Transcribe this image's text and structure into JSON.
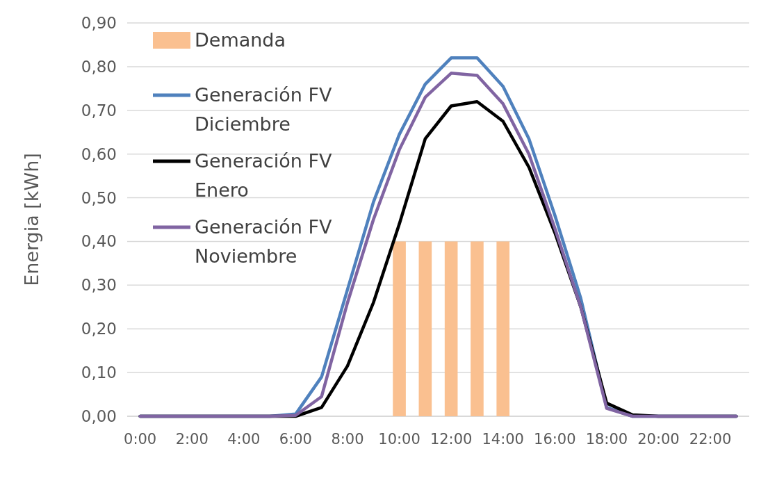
{
  "chart_data": {
    "type": "line",
    "ylabel": "Energia [kWh]",
    "categories": [
      "0:00",
      null,
      "2:00",
      null,
      "4:00",
      null,
      "6:00",
      null,
      "8:00",
      null,
      "10:00",
      null,
      "12:00",
      null,
      "14:00",
      null,
      "16:00",
      null,
      "18:00",
      null,
      "20:00",
      null,
      "22:00",
      null
    ],
    "ylim": [
      0,
      0.9
    ],
    "yticks": [
      {
        "value": 0,
        "label": "0,00"
      },
      {
        "value": 0.1,
        "label": "0,10"
      },
      {
        "value": 0.2,
        "label": "0,20"
      },
      {
        "value": 0.3,
        "label": "0,30"
      },
      {
        "value": 0.4,
        "label": "0,40"
      },
      {
        "value": 0.5,
        "label": "0,50"
      },
      {
        "value": 0.6,
        "label": "0,60"
      },
      {
        "value": 0.7,
        "label": "0,70"
      },
      {
        "value": 0.8,
        "label": "0,80"
      },
      {
        "value": 0.9,
        "label": "0,90"
      }
    ],
    "grid": "y",
    "legend": "top left",
    "series": [
      {
        "name": "Demanda",
        "type": "bar",
        "color": "#fac090",
        "values": [
          null,
          null,
          null,
          null,
          null,
          null,
          null,
          null,
          null,
          null,
          0.4,
          0.4,
          0.4,
          0.4,
          0.4,
          null,
          null,
          null,
          null,
          null,
          null,
          null,
          null,
          null
        ]
      },
      {
        "name": "Generación FV Diciembre",
        "color": "#4f81bd",
        "values": [
          0,
          0,
          0,
          0,
          0,
          0,
          0.005,
          0.09,
          0.29,
          0.49,
          0.645,
          0.76,
          0.82,
          0.82,
          0.755,
          0.635,
          0.46,
          0.27,
          0.02,
          0,
          0,
          0,
          0,
          0
        ]
      },
      {
        "name": "Generación FV Enero",
        "color": "#000000",
        "values": [
          0,
          0,
          0,
          0,
          0,
          0,
          0,
          0.02,
          0.115,
          0.26,
          0.44,
          0.635,
          0.71,
          0.72,
          0.675,
          0.57,
          0.42,
          0.25,
          0.03,
          0.003,
          0,
          0,
          0,
          0
        ]
      },
      {
        "name": "Generación FV Noviembre",
        "color": "#8064a2",
        "values": [
          0,
          0,
          0,
          0,
          0,
          0,
          0.002,
          0.045,
          0.26,
          0.45,
          0.61,
          0.73,
          0.785,
          0.78,
          0.715,
          0.6,
          0.43,
          0.25,
          0.018,
          0,
          0,
          0,
          0,
          0
        ]
      }
    ]
  }
}
